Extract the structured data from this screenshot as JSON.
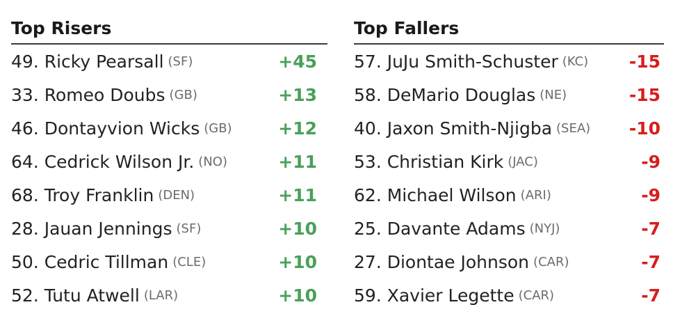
{
  "risers": {
    "title": "Top Risers",
    "items": [
      {
        "rank": "49",
        "name": "Ricky Pearsall",
        "team": "SF",
        "change": "+45"
      },
      {
        "rank": "33",
        "name": "Romeo Doubs",
        "team": "GB",
        "change": "+13"
      },
      {
        "rank": "46",
        "name": "Dontayvion Wicks",
        "team": "GB",
        "change": "+12"
      },
      {
        "rank": "64",
        "name": "Cedrick Wilson Jr.",
        "team": "NO",
        "change": "+11"
      },
      {
        "rank": "68",
        "name": "Troy Franklin",
        "team": "DEN",
        "change": "+11"
      },
      {
        "rank": "28",
        "name": "Jauan Jennings",
        "team": "SF",
        "change": "+10"
      },
      {
        "rank": "50",
        "name": "Cedric Tillman",
        "team": "CLE",
        "change": "+10"
      },
      {
        "rank": "52",
        "name": "Tutu Atwell",
        "team": "LAR",
        "change": "+10"
      }
    ]
  },
  "fallers": {
    "title": "Top Fallers",
    "items": [
      {
        "rank": "57",
        "name": "JuJu Smith-Schuster",
        "team": "KC",
        "change": "-15"
      },
      {
        "rank": "58",
        "name": "DeMario Douglas",
        "team": "NE",
        "change": "-15"
      },
      {
        "rank": "40",
        "name": "Jaxon Smith-Njigba",
        "team": "SEA",
        "change": "-10"
      },
      {
        "rank": "53",
        "name": "Christian Kirk",
        "team": "JAC",
        "change": "-9"
      },
      {
        "rank": "62",
        "name": "Michael Wilson",
        "team": "ARI",
        "change": "-9"
      },
      {
        "rank": "25",
        "name": "Davante Adams",
        "team": "NYJ",
        "change": "-7"
      },
      {
        "rank": "27",
        "name": "Diontae Johnson",
        "team": "CAR",
        "change": "-7"
      },
      {
        "rank": "59",
        "name": "Xavier Legette",
        "team": "CAR",
        "change": "-7"
      }
    ]
  },
  "colors": {
    "riser": "#4aa05a",
    "faller": "#d61e1e"
  }
}
